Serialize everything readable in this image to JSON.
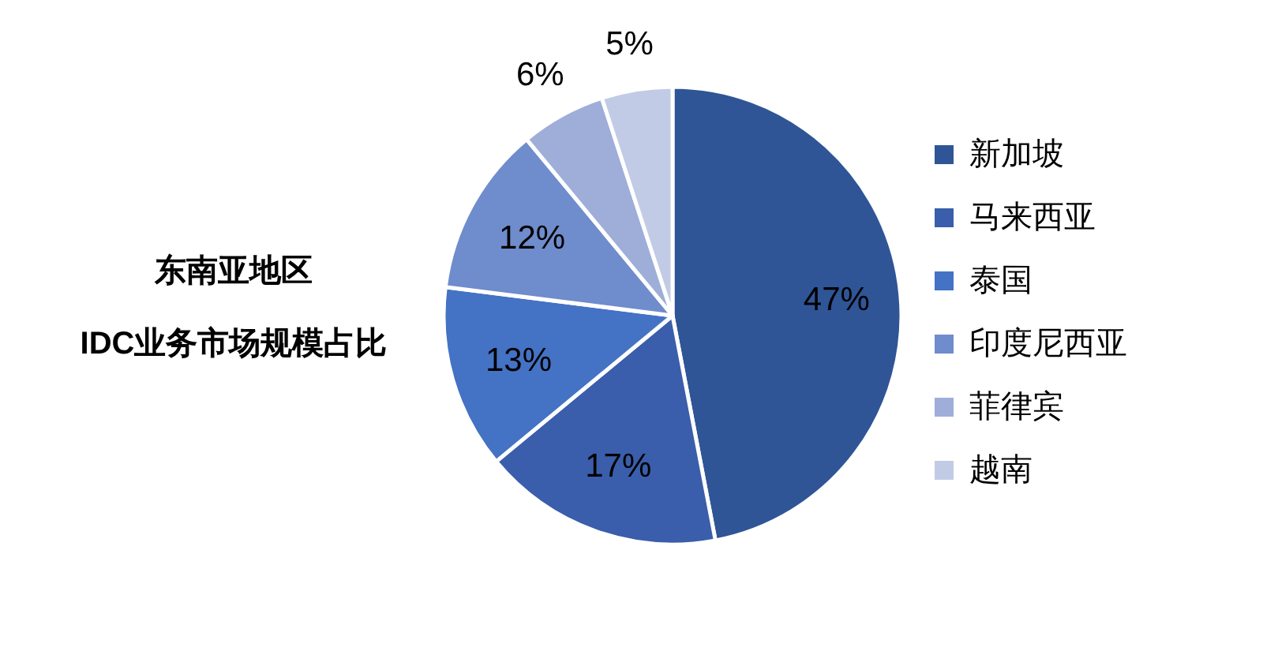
{
  "chart_data": {
    "type": "pie",
    "title": "东南亚地区\nIDC业务市场规模占比",
    "categories": [
      "新加坡",
      "马来西亚",
      "泰国",
      "印度尼西亚",
      "菲律宾",
      "越南"
    ],
    "values": [
      47,
      17,
      13,
      12,
      6,
      5
    ],
    "colors": [
      "#2f5597",
      "#3a5eab",
      "#4472c4",
      "#6f8ccc",
      "#9eaed9",
      "#c2cbe6"
    ],
    "value_labels": [
      "47%",
      "17%",
      "13%",
      "12%",
      "6%",
      "5%"
    ],
    "legend": "right"
  }
}
